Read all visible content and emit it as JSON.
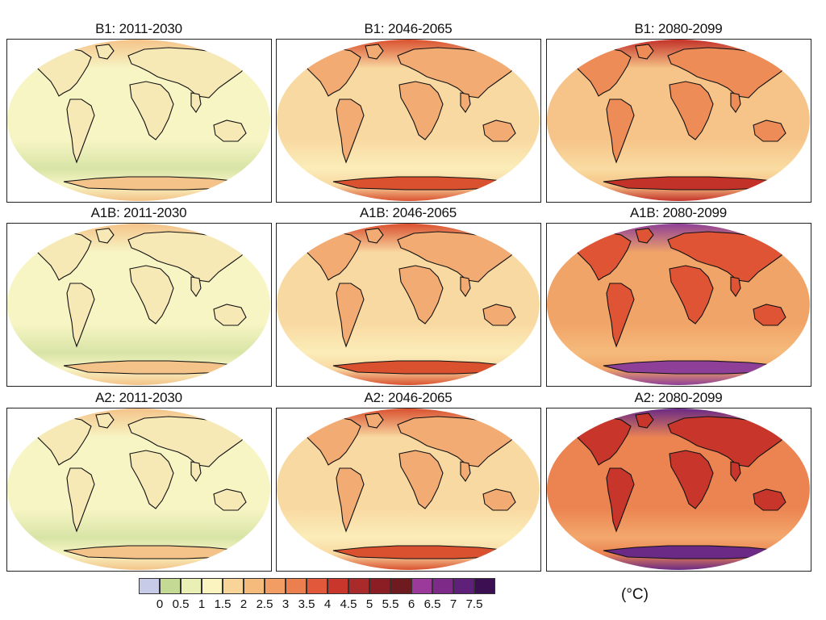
{
  "panels": [
    {
      "title": "B1: 2011-2030",
      "level": 0
    },
    {
      "title": "B1: 2046-2065",
      "level": 1
    },
    {
      "title": "B1: 2080-2099",
      "level": 2
    },
    {
      "title": "A1B: 2011-2030",
      "level": 0
    },
    {
      "title": "A1B: 2046-2065",
      "level": 1
    },
    {
      "title": "A1B: 2080-2099",
      "level": 3
    },
    {
      "title": "A2: 2011-2030",
      "level": 0
    },
    {
      "title": "A2: 2046-2065",
      "level": 1
    },
    {
      "title": "A2: 2080-2099",
      "level": 4
    }
  ],
  "legend": {
    "unit": "(°C)",
    "tick_labels": [
      "0",
      "0.5",
      "1",
      "1.5",
      "2",
      "2.5",
      "3",
      "3.5",
      "4",
      "4.5",
      "5",
      "5.5",
      "6",
      "6.5",
      "7",
      "7.5"
    ],
    "colors": [
      "#c8cbe8",
      "#c4da94",
      "#e9efb5",
      "#fbf4c0",
      "#f8d499",
      "#f5bb7c",
      "#f29d64",
      "#ec7f4e",
      "#e1583a",
      "#c9362b",
      "#a82a2a",
      "#8b1e24",
      "#6e1a1f",
      "#9b3a9a",
      "#7d2a88",
      "#5f2079",
      "#3c0f52"
    ]
  },
  "level_palettes": [
    {
      "ocean": "#f7f5c4",
      "land": "#f6e9b6",
      "south": "#d8e4a6",
      "north": "#f4c389"
    },
    {
      "ocean": "#f9d9a2",
      "land": "#f2ab72",
      "south": "#fbedb9",
      "north": "#d9512f"
    },
    {
      "ocean": "#f6c488",
      "land": "#ed8c56",
      "south": "#f9dca2",
      "north": "#c33229"
    },
    {
      "ocean": "#f1a468",
      "land": "#de5434",
      "south": "#f5bb7c",
      "north": "#8e3f97"
    },
    {
      "ocean": "#ec8452",
      "land": "#c8362b",
      "south": "#f3a86d",
      "north": "#6a2a86"
    }
  ]
}
